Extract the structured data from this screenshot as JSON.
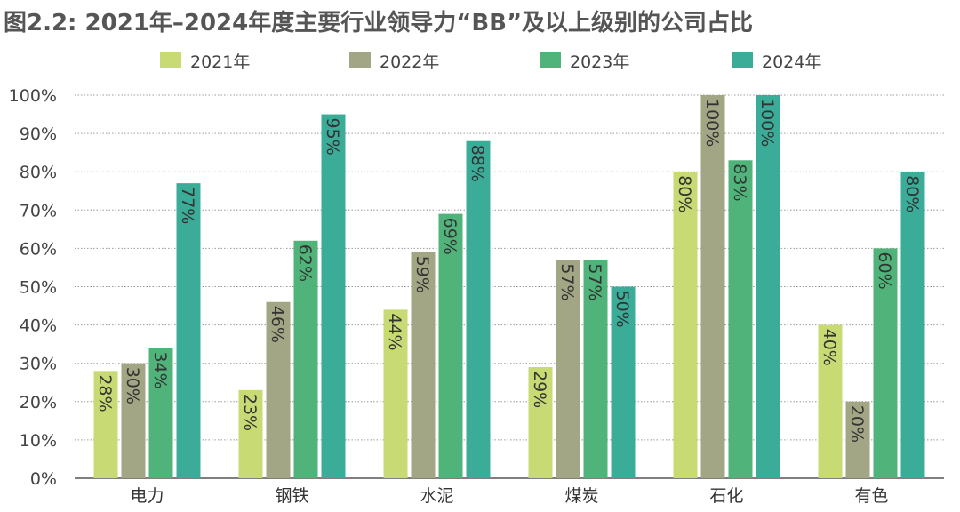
{
  "title": "图2.2: 2021年–2024年度主要行业领导力“BB”及以上级别的公司占比",
  "chart_data": {
    "type": "bar",
    "categories": [
      "电力",
      "钢铁",
      "水泥",
      "煤炭",
      "石化",
      "有色"
    ],
    "series": [
      {
        "name": "2021年",
        "color": "#c8da74",
        "values": [
          28,
          23,
          44,
          29,
          80,
          40
        ]
      },
      {
        "name": "2022年",
        "color": "#a3a684",
        "values": [
          30,
          46,
          59,
          57,
          100,
          20
        ]
      },
      {
        "name": "2023年",
        "color": "#4fb37a",
        "values": [
          34,
          62,
          69,
          57,
          83,
          60
        ]
      },
      {
        "name": "2024年",
        "color": "#3aac98",
        "values": [
          77,
          95,
          88,
          50,
          100,
          80
        ]
      }
    ],
    "y_ticks": [
      "0%",
      "10%",
      "20%",
      "30%",
      "40%",
      "50%",
      "60%",
      "70%",
      "80%",
      "90%",
      "100%"
    ],
    "ylim": [
      0,
      100
    ],
    "value_suffix": "%",
    "grid": "horizontal",
    "legend_position": "top"
  }
}
